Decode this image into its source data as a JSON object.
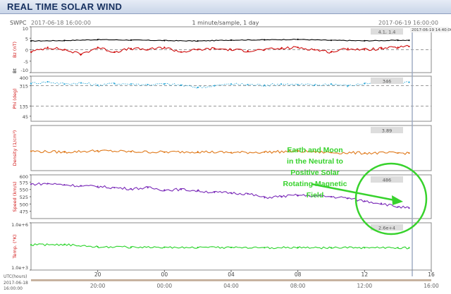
{
  "header": {
    "title": "REAL TIME SOLAR WIND"
  },
  "top_bar": {
    "source": "SWPC",
    "start_time": "2017-06-18 16:00:00",
    "sampling": "1 minute/sample, 1 day",
    "end_time": "2017-06-19 16:00:00",
    "cursor_time": "2017-06-19 14:40:00"
  },
  "annotation": {
    "lines": [
      "Earth and Moon",
      "in the Neutral to",
      "Positive Solar",
      "Rotating Magnetic",
      "Field"
    ],
    "color": "#37d22c"
  },
  "colors": {
    "bt": "#000000",
    "bz": "#d01010",
    "phi": "#2aa8d8",
    "density": "#e07a1c",
    "speed": "#7a2ab8",
    "temp": "#2ad42a",
    "ref_line": "#777777",
    "cursor": "#9aa8c0"
  },
  "chart_data": [
    {
      "type": "line",
      "panel": "magnetic_field",
      "ylabel": "Bz (nT)",
      "ylabel2": "Bt",
      "ylim": [
        -10,
        10
      ],
      "yticks": [
        "10",
        "5",
        "0",
        "-5",
        "-10"
      ],
      "readout": "4.1, 1.4",
      "reference_line": 0,
      "series": [
        {
          "name": "Bt",
          "color": "#000000",
          "x": [
            0,
            2,
            4,
            6,
            8,
            10,
            12,
            14,
            16,
            18,
            20,
            22,
            22.67
          ],
          "values": [
            3.8,
            4.0,
            4.4,
            4.2,
            4.0,
            3.8,
            4.2,
            4.3,
            4.5,
            4.1,
            3.9,
            4.1,
            4.1
          ]
        },
        {
          "name": "Bz",
          "color": "#d01010",
          "x": [
            0,
            1,
            2,
            3,
            4,
            5,
            6,
            7,
            8,
            9,
            10,
            11,
            12,
            13,
            14,
            15,
            16,
            17,
            18,
            19,
            20,
            21,
            22,
            22.67
          ],
          "values": [
            -1,
            1,
            0,
            -2,
            1,
            -1,
            0.5,
            0,
            1,
            -1,
            0,
            0.5,
            0,
            -0.5,
            0,
            0.5,
            1,
            0,
            -1,
            0.5,
            0,
            0.5,
            1,
            1.4
          ]
        }
      ]
    },
    {
      "type": "scatter",
      "panel": "phi_angle",
      "ylabel": "Phi (deg)",
      "ylim": [
        0,
        400
      ],
      "yticks": [
        "400",
        "315",
        "135",
        "45"
      ],
      "readout": "346",
      "reference_lines": [
        315,
        135
      ],
      "series": [
        {
          "name": "Phi",
          "color": "#2aa8d8",
          "x": [
            0,
            1,
            2,
            3,
            4,
            5,
            6,
            7,
            8,
            9,
            10,
            11,
            12,
            13,
            14,
            15,
            16,
            17,
            18,
            19,
            20,
            21,
            22,
            22.67
          ],
          "values": [
            335,
            350,
            330,
            340,
            320,
            335,
            330,
            325,
            330,
            320,
            300,
            315,
            330,
            325,
            320,
            330,
            325,
            320,
            330,
            315,
            335,
            340,
            345,
            346
          ]
        }
      ]
    },
    {
      "type": "line",
      "panel": "density",
      "ylabel": "Density (1/cm³)",
      "ylim": [
        0,
        10
      ],
      "readout": "3.89",
      "series": [
        {
          "name": "Density",
          "color": "#e07a1c",
          "x": [
            0,
            2,
            4,
            6,
            8,
            10,
            12,
            14,
            16,
            18,
            20,
            22,
            22.67
          ],
          "values": [
            4.3,
            4.1,
            4.4,
            4.2,
            4.1,
            4.2,
            4.0,
            4.1,
            4.3,
            4.0,
            3.9,
            3.9,
            3.89
          ]
        }
      ]
    },
    {
      "type": "line",
      "panel": "speed",
      "ylabel": "Speed (km/s)",
      "ylim": [
        450,
        600
      ],
      "yticks": [
        "600",
        "575",
        "550",
        "525",
        "500",
        "475"
      ],
      "readout": "486",
      "series": [
        {
          "name": "Speed",
          "color": "#7a2ab8",
          "x": [
            0,
            1,
            2,
            3,
            4,
            5,
            6,
            7,
            8,
            9,
            10,
            11,
            12,
            13,
            14,
            15,
            16,
            17,
            18,
            19,
            20,
            21,
            22,
            22.67
          ],
          "values": [
            568,
            570,
            566,
            562,
            560,
            556,
            552,
            556,
            548,
            550,
            545,
            540,
            538,
            535,
            522,
            526,
            530,
            528,
            525,
            520,
            510,
            502,
            490,
            486
          ]
        }
      ]
    },
    {
      "type": "line",
      "panel": "temperature",
      "ylabel": "Temp. (°K)",
      "ylim": [
        1000,
        1000000
      ],
      "log_scale": true,
      "yticks": [
        "1.0e+6",
        "1.0e+3"
      ],
      "readout": "2.6e+4",
      "series": [
        {
          "name": "Temp",
          "color": "#2ad42a",
          "x": [
            0,
            2,
            4,
            6,
            8,
            10,
            12,
            14,
            16,
            18,
            20,
            22,
            22.67
          ],
          "values": [
            40000,
            42000,
            30000,
            29000,
            28000,
            27000,
            27000,
            26500,
            27000,
            26000,
            26000,
            26000,
            26000
          ]
        }
      ]
    }
  ],
  "x_axis": {
    "range": [
      0,
      24
    ],
    "upper_ticks": [
      "20",
      "00",
      "04",
      "08",
      "12",
      "16"
    ],
    "upper_tick_hours": [
      4,
      8,
      12,
      16,
      20,
      24
    ],
    "lower_ticks": [
      "20:00",
      "00:00",
      "04:00",
      "08:00",
      "12:00",
      "16:00"
    ],
    "utc_label": "UTC(hours)",
    "corner_date": "2017-06-18",
    "corner_time": "16:00:00"
  }
}
